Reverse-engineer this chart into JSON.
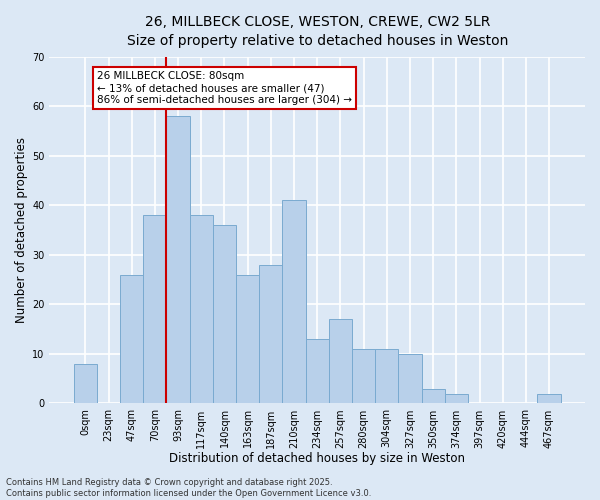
{
  "title_line1": "26, MILLBECK CLOSE, WESTON, CREWE, CW2 5LR",
  "title_line2": "Size of property relative to detached houses in Weston",
  "xlabel": "Distribution of detached houses by size in Weston",
  "ylabel": "Number of detached properties",
  "categories": [
    "0sqm",
    "23sqm",
    "47sqm",
    "70sqm",
    "93sqm",
    "117sqm",
    "140sqm",
    "163sqm",
    "187sqm",
    "210sqm",
    "234sqm",
    "257sqm",
    "280sqm",
    "304sqm",
    "327sqm",
    "350sqm",
    "374sqm",
    "397sqm",
    "420sqm",
    "444sqm",
    "467sqm"
  ],
  "values": [
    8,
    0,
    26,
    38,
    58,
    38,
    36,
    26,
    28,
    41,
    13,
    17,
    11,
    11,
    10,
    3,
    2,
    0,
    0,
    0,
    2
  ],
  "bar_color": "#b8d0ea",
  "bar_edge_color": "#7aaad0",
  "background_color": "#dce8f5",
  "grid_color": "#ffffff",
  "annotation_box_text": "26 MILLBECK CLOSE: 80sqm\n← 13% of detached houses are smaller (47)\n86% of semi-detached houses are larger (304) →",
  "annotation_box_color": "#ffffff",
  "annotation_box_edge_color": "#cc0000",
  "vline_color": "#cc0000",
  "vline_x_index": 3,
  "ylim": [
    0,
    70
  ],
  "yticks": [
    0,
    10,
    20,
    30,
    40,
    50,
    60,
    70
  ],
  "footnote": "Contains HM Land Registry data © Crown copyright and database right 2025.\nContains public sector information licensed under the Open Government Licence v3.0.",
  "title_fontsize": 10,
  "subtitle_fontsize": 9,
  "tick_fontsize": 7,
  "label_fontsize": 8.5,
  "annotation_fontsize": 7.5,
  "footnote_fontsize": 6
}
